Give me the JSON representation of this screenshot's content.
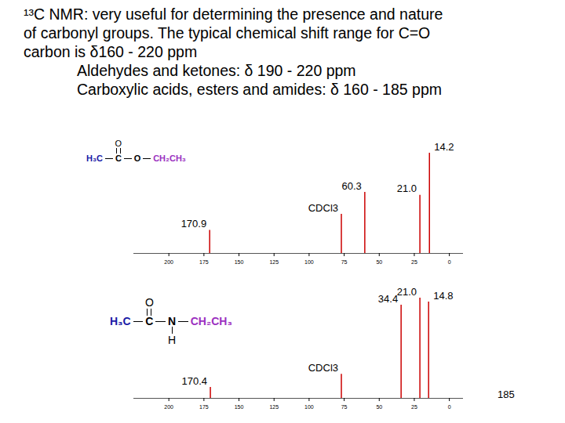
{
  "heading": {
    "lines": [
      {
        "text": "¹³C NMR: very useful for determining the presence and nature",
        "indent": false
      },
      {
        "text": "of carbonyl groups.  The typical chemical shift range for C=O",
        "indent": false
      },
      {
        "text": "carbon is δ160 - 220 ppm",
        "indent": false
      },
      {
        "text": "Aldehydes and ketones: δ 190 - 220 ppm",
        "indent": true
      },
      {
        "text": "Carboxylic acids, esters and amides: δ 160 - 185 ppm",
        "indent": true
      }
    ]
  },
  "chart_data": [
    {
      "type": "spectrum",
      "structure": {
        "segments": [
          {
            "text": "H₃C",
            "color": "#1a1aa6"
          },
          {
            "text": "C",
            "color": "#000000",
            "above": "O"
          },
          {
            "text": "O",
            "color": "#000000"
          },
          {
            "text": "CH₂CH₃",
            "color": "#9b30c0"
          }
        ]
      },
      "x": [
        170.9,
        77.0,
        60.3,
        21.0,
        14.2
      ],
      "values": [
        23,
        39,
        61,
        58,
        100
      ],
      "peak_labels": [
        "170.9",
        "CDCl3",
        "60.3",
        "21.0",
        "14.2"
      ],
      "color": "#cc0000",
      "xlim": [
        225,
        -10
      ],
      "xticks": [
        200,
        175,
        150,
        125,
        100,
        75,
        50,
        25,
        0
      ],
      "ylim": [
        0,
        100
      ],
      "tick_labels": "x"
    },
    {
      "type": "spectrum",
      "structure": {
        "segments": [
          {
            "text": "H₃C",
            "color": "#1a1aa6"
          },
          {
            "text": "C",
            "color": "#000000",
            "above": "O"
          },
          {
            "text": "N",
            "color": "#000000",
            "below": "H"
          },
          {
            "text": "CH₂CH₃",
            "color": "#9b30c0"
          }
        ]
      },
      "x": [
        170.4,
        77.0,
        34.4,
        21.0,
        14.8
      ],
      "values": [
        11,
        24,
        93,
        100,
        96
      ],
      "peak_labels": [
        "170.4",
        "CDCl3",
        "34.4",
        "21.0",
        "14.8"
      ],
      "color": "#cc0000",
      "xlim": [
        225,
        -10
      ],
      "xticks": [
        200,
        175,
        150,
        125,
        100,
        75,
        50,
        25,
        0
      ],
      "ylim": [
        0,
        100
      ],
      "tick_labels": "x"
    }
  ],
  "page_number": "185"
}
